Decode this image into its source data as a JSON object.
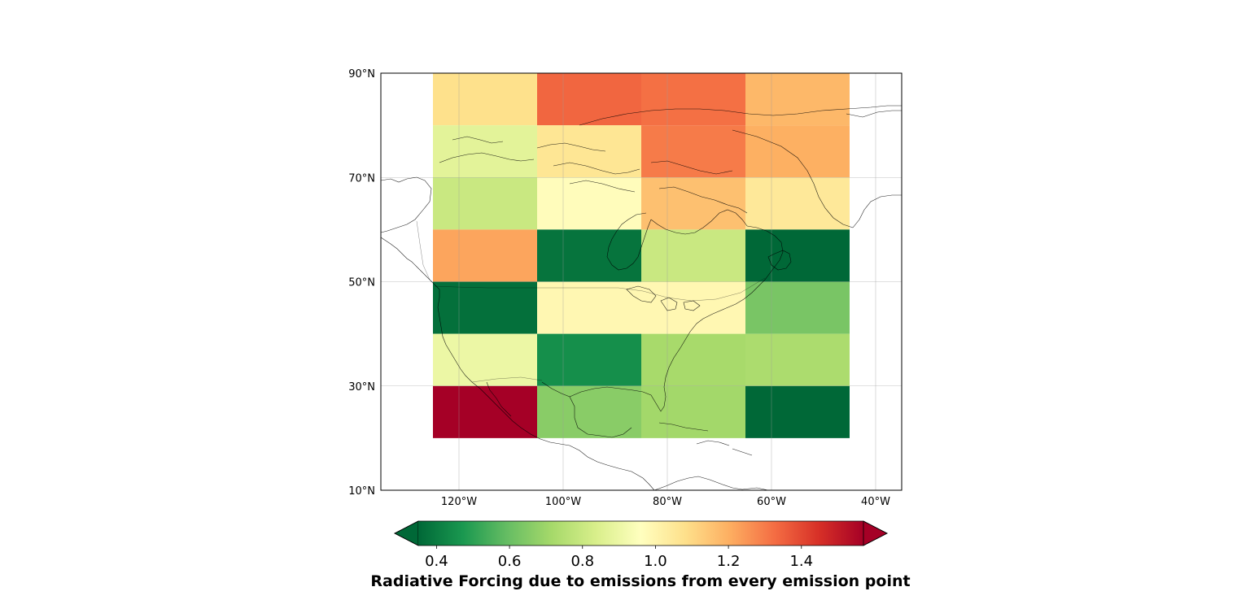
{
  "chart_data": {
    "type": "heatmap",
    "title": "",
    "map_extent": {
      "lon": [
        -135,
        -35
      ],
      "lat": [
        10,
        90
      ]
    },
    "lon_ticks": [
      {
        "value": -120,
        "label": "120°W"
      },
      {
        "value": -100,
        "label": "100°W"
      },
      {
        "value": -80,
        "label": "80°W"
      },
      {
        "value": -60,
        "label": "60°W"
      },
      {
        "value": -40,
        "label": "40°W"
      }
    ],
    "lat_ticks": [
      {
        "value": 10,
        "label": "10°N"
      },
      {
        "value": 30,
        "label": "30°N"
      },
      {
        "value": 50,
        "label": "50°N"
      },
      {
        "value": 70,
        "label": "70°N"
      },
      {
        "value": 90,
        "label": "90°N"
      }
    ],
    "grid": true,
    "cell_lon_edges": [
      -125,
      -105,
      -85,
      -65,
      -45
    ],
    "cell_lat_edges": [
      90,
      80,
      70,
      60,
      50,
      40,
      30,
      20
    ],
    "values": [
      [
        1.08,
        1.34,
        1.32,
        1.18
      ],
      [
        0.87,
        1.06,
        1.3,
        1.2
      ],
      [
        0.8,
        0.97,
        1.16,
        1.05
      ],
      [
        1.22,
        0.38,
        0.8,
        0.3
      ],
      [
        0.37,
        0.99,
        0.99,
        0.63
      ],
      [
        0.9,
        0.45,
        0.72,
        0.73
      ],
      [
        1.6,
        0.66,
        0.71,
        0.34
      ]
    ],
    "colorbar": {
      "label": "Radiative Forcing due to emissions from every emission point",
      "vmin": 0.35,
      "vmax": 1.57,
      "extend": "both",
      "colormap": "RdYlGn_r",
      "ticks": [
        {
          "value": 0.4,
          "label": "0.4"
        },
        {
          "value": 0.6,
          "label": "0.6"
        },
        {
          "value": 0.8,
          "label": "0.8"
        },
        {
          "value": 1.0,
          "label": "1.0"
        },
        {
          "value": 1.2,
          "label": "1.2"
        },
        {
          "value": 1.4,
          "label": "1.4"
        }
      ],
      "color_stops": [
        "#006837",
        "#1a9850",
        "#66bd63",
        "#a6d96a",
        "#d9ef8b",
        "#ffffbf",
        "#fee08b",
        "#fdae61",
        "#f46d43",
        "#d73027",
        "#a50026"
      ],
      "under_color": "#006837",
      "over_color": "#a50026"
    }
  }
}
